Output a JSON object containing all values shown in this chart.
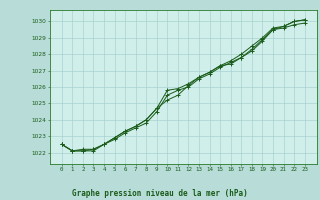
{
  "title": "Graphe pression niveau de la mer (hPa)",
  "bg_color": "#b8ddd8",
  "plot_bg_color": "#d0eeea",
  "grid_color": "#a0cccc",
  "line_color": "#1a5c1a",
  "border_color": "#2a7a2a",
  "x_labels": [
    "0",
    "1",
    "2",
    "3",
    "4",
    "5",
    "6",
    "7",
    "8",
    "9",
    "10",
    "11",
    "12",
    "13",
    "14",
    "15",
    "16",
    "17",
    "18",
    "19",
    "20",
    "21",
    "22",
    "23"
  ],
  "ylim": [
    1021.3,
    1030.7
  ],
  "yticks": [
    1022,
    1023,
    1024,
    1025,
    1026,
    1027,
    1028,
    1029,
    1030
  ],
  "line1": [
    1022.5,
    1022.1,
    1022.1,
    1022.2,
    1022.5,
    1022.9,
    1023.3,
    1023.6,
    1024.0,
    1024.7,
    1025.8,
    1025.9,
    1026.2,
    1026.6,
    1026.9,
    1027.3,
    1027.4,
    1027.8,
    1028.2,
    1028.8,
    1029.5,
    1029.7,
    1030.0,
    1030.1
  ],
  "line2": [
    1022.5,
    1022.1,
    1022.1,
    1022.1,
    1022.5,
    1022.8,
    1023.2,
    1023.5,
    1023.8,
    1024.5,
    1025.5,
    1025.8,
    1026.0,
    1026.5,
    1026.8,
    1027.2,
    1027.5,
    1027.8,
    1028.3,
    1028.9,
    1029.5,
    1029.6,
    1029.8,
    1029.9
  ],
  "line3": [
    1022.5,
    1022.1,
    1022.2,
    1022.2,
    1022.5,
    1022.9,
    1023.3,
    1023.6,
    1024.0,
    1024.7,
    1025.2,
    1025.5,
    1026.1,
    1026.6,
    1026.9,
    1027.3,
    1027.6,
    1028.0,
    1028.5,
    1029.0,
    1029.6,
    1029.7,
    1030.0,
    1030.1
  ]
}
